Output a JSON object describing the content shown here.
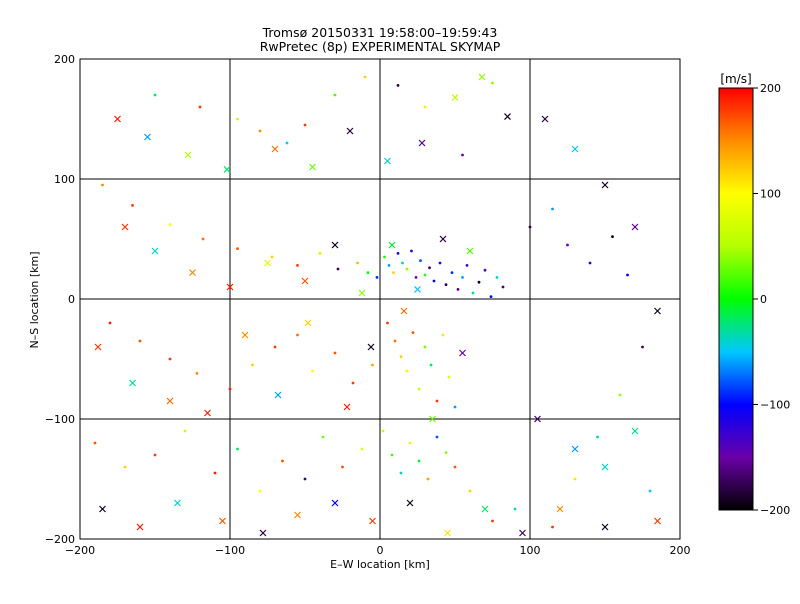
{
  "chart_data": {
    "type": "scatter",
    "title": "Tromsø 20150331 19:58:00–19:59:43",
    "subtitle": "RwPretec (8p) EXPERIMENTAL SKYMAP",
    "xlabel": "E–W location [km]",
    "ylabel": "N–S location [km]",
    "xlim": [
      -200,
      200
    ],
    "ylim": [
      -200,
      200
    ],
    "x_ticks": [
      "-200",
      "-100",
      "0",
      "100",
      "200"
    ],
    "y_ticks": [
      "-200",
      "-100",
      "0",
      "100",
      "200"
    ],
    "grid": true,
    "colorbar": {
      "label": "[m/s]",
      "range": [
        -200,
        200
      ],
      "ticks": [
        "-200",
        "-100",
        "0",
        "100",
        "200"
      ],
      "colormap": [
        {
          "v": -200,
          "color": "#000000"
        },
        {
          "v": -150,
          "color": "#6a00a8"
        },
        {
          "v": -100,
          "color": "#0000ff"
        },
        {
          "v": -50,
          "color": "#00c8ff"
        },
        {
          "v": 0,
          "color": "#00ff00"
        },
        {
          "v": 50,
          "color": "#b4ff00"
        },
        {
          "v": 100,
          "color": "#ffff00"
        },
        {
          "v": 150,
          "color": "#ff8c00"
        },
        {
          "v": 200,
          "color": "#ff0000"
        }
      ]
    },
    "series": [
      {
        "marker": "dot",
        "points": [
          [
            -150,
            170,
            -20
          ],
          [
            -120,
            160,
            180
          ],
          [
            -95,
            150,
            60
          ],
          [
            -80,
            140,
            150
          ],
          [
            -62,
            130,
            -50
          ],
          [
            -50,
            145,
            180
          ],
          [
            -30,
            170,
            20
          ],
          [
            -10,
            185,
            120
          ],
          [
            12,
            178,
            -180
          ],
          [
            30,
            160,
            80
          ],
          [
            55,
            120,
            -150
          ],
          [
            75,
            180,
            40
          ],
          [
            -185,
            95,
            150
          ],
          [
            -165,
            78,
            180
          ],
          [
            -140,
            62,
            100
          ],
          [
            -118,
            50,
            160
          ],
          [
            -95,
            42,
            170
          ],
          [
            -72,
            35,
            120
          ],
          [
            -55,
            28,
            180
          ],
          [
            -40,
            38,
            60
          ],
          [
            -28,
            25,
            -170
          ],
          [
            -15,
            30,
            130
          ],
          [
            -8,
            22,
            0
          ],
          [
            -2,
            18,
            -90
          ],
          [
            3,
            35,
            10
          ],
          [
            6,
            28,
            -60
          ],
          [
            9,
            22,
            120
          ],
          [
            12,
            38,
            -110
          ],
          [
            15,
            30,
            -30
          ],
          [
            18,
            25,
            40
          ],
          [
            21,
            40,
            -120
          ],
          [
            24,
            18,
            -150
          ],
          [
            27,
            32,
            -80
          ],
          [
            30,
            20,
            10
          ],
          [
            33,
            26,
            -170
          ],
          [
            36,
            15,
            -100
          ],
          [
            40,
            30,
            -120
          ],
          [
            44,
            12,
            -180
          ],
          [
            48,
            22,
            -90
          ],
          [
            52,
            8,
            -160
          ],
          [
            55,
            18,
            -60
          ],
          [
            58,
            28,
            -130
          ],
          [
            62,
            5,
            -20
          ],
          [
            66,
            14,
            -190
          ],
          [
            70,
            24,
            -140
          ],
          [
            74,
            2,
            -100
          ],
          [
            78,
            18,
            -40
          ],
          [
            82,
            10,
            -170
          ],
          [
            -180,
            -20,
            190
          ],
          [
            -160,
            -35,
            170
          ],
          [
            -140,
            -50,
            180
          ],
          [
            -122,
            -62,
            150
          ],
          [
            -100,
            -75,
            190
          ],
          [
            -85,
            -55,
            120
          ],
          [
            -70,
            -40,
            180
          ],
          [
            -55,
            -30,
            160
          ],
          [
            -45,
            -60,
            100
          ],
          [
            -30,
            -45,
            170
          ],
          [
            -18,
            -70,
            180
          ],
          [
            -5,
            -55,
            140
          ],
          [
            5,
            -20,
            180
          ],
          [
            10,
            -35,
            160
          ],
          [
            14,
            -48,
            120
          ],
          [
            18,
            -60,
            90
          ],
          [
            22,
            -28,
            170
          ],
          [
            26,
            -75,
            60
          ],
          [
            30,
            -40,
            30
          ],
          [
            34,
            -55,
            -20
          ],
          [
            38,
            -85,
            180
          ],
          [
            42,
            -30,
            110
          ],
          [
            46,
            -65,
            70
          ],
          [
            50,
            -90,
            -60
          ],
          [
            -190,
            -120,
            170
          ],
          [
            -170,
            -140,
            120
          ],
          [
            -150,
            -130,
            180
          ],
          [
            -130,
            -110,
            60
          ],
          [
            -110,
            -145,
            190
          ],
          [
            -95,
            -125,
            -20
          ],
          [
            -80,
            -160,
            100
          ],
          [
            -65,
            -135,
            170
          ],
          [
            -50,
            -150,
            -170
          ],
          [
            -38,
            -115,
            30
          ],
          [
            -25,
            -140,
            170
          ],
          [
            -12,
            -125,
            80
          ],
          [
            2,
            -110,
            60
          ],
          [
            8,
            -130,
            20
          ],
          [
            14,
            -145,
            -40
          ],
          [
            20,
            -120,
            90
          ],
          [
            26,
            -135,
            -10
          ],
          [
            32,
            -150,
            140
          ],
          [
            38,
            -115,
            -80
          ],
          [
            44,
            -128,
            40
          ],
          [
            50,
            -140,
            170
          ],
          [
            60,
            -160,
            120
          ],
          [
            75,
            -185,
            180
          ],
          [
            90,
            -175,
            -30
          ],
          [
            100,
            60,
            -180
          ],
          [
            115,
            75,
            -60
          ],
          [
            125,
            45,
            -150
          ],
          [
            140,
            30,
            -120
          ],
          [
            155,
            52,
            -190
          ],
          [
            165,
            20,
            -100
          ],
          [
            175,
            -40,
            -170
          ],
          [
            160,
            -80,
            40
          ],
          [
            145,
            -115,
            -30
          ],
          [
            130,
            -150,
            110
          ],
          [
            115,
            -190,
            180
          ],
          [
            180,
            -160,
            -50
          ]
        ]
      },
      {
        "marker": "cross",
        "points": [
          [
            -175,
            150,
            190
          ],
          [
            -155,
            135,
            -60
          ],
          [
            -128,
            120,
            50
          ],
          [
            -102,
            108,
            -20
          ],
          [
            -70,
            125,
            160
          ],
          [
            -45,
            110,
            30
          ],
          [
            -20,
            140,
            -180
          ],
          [
            5,
            115,
            -40
          ],
          [
            28,
            130,
            -160
          ],
          [
            50,
            168,
            60
          ],
          [
            68,
            185,
            40
          ],
          [
            85,
            152,
            -190
          ],
          [
            -170,
            60,
            180
          ],
          [
            -150,
            40,
            -40
          ],
          [
            -125,
            22,
            150
          ],
          [
            -100,
            10,
            190
          ],
          [
            -75,
            30,
            80
          ],
          [
            -50,
            15,
            170
          ],
          [
            -30,
            45,
            -190
          ],
          [
            -12,
            5,
            40
          ],
          [
            8,
            45,
            -10
          ],
          [
            25,
            8,
            -50
          ],
          [
            42,
            50,
            -180
          ],
          [
            60,
            40,
            20
          ],
          [
            -188,
            -40,
            180
          ],
          [
            -165,
            -70,
            -30
          ],
          [
            -140,
            -85,
            160
          ],
          [
            -115,
            -95,
            190
          ],
          [
            -90,
            -30,
            150
          ],
          [
            -68,
            -80,
            -60
          ],
          [
            -48,
            -20,
            120
          ],
          [
            -22,
            -90,
            190
          ],
          [
            -6,
            -40,
            -190
          ],
          [
            16,
            -10,
            160
          ],
          [
            35,
            -100,
            30
          ],
          [
            55,
            -45,
            -150
          ],
          [
            -185,
            -175,
            -190
          ],
          [
            -160,
            -190,
            190
          ],
          [
            -135,
            -170,
            -40
          ],
          [
            -105,
            -185,
            170
          ],
          [
            -78,
            -195,
            -180
          ],
          [
            -55,
            -180,
            150
          ],
          [
            -30,
            -170,
            -100
          ],
          [
            -5,
            -185,
            180
          ],
          [
            20,
            -170,
            -190
          ],
          [
            45,
            -195,
            110
          ],
          [
            70,
            -175,
            -20
          ],
          [
            95,
            -195,
            -170
          ],
          [
            110,
            150,
            -180
          ],
          [
            130,
            125,
            -50
          ],
          [
            150,
            95,
            -190
          ],
          [
            170,
            60,
            -150
          ],
          [
            185,
            -10,
            -190
          ],
          [
            170,
            -110,
            -30
          ],
          [
            150,
            -140,
            -40
          ],
          [
            130,
            -125,
            -60
          ],
          [
            105,
            -100,
            -170
          ],
          [
            185,
            -185,
            180
          ],
          [
            150,
            -190,
            -190
          ],
          [
            120,
            -175,
            150
          ]
        ]
      }
    ]
  }
}
